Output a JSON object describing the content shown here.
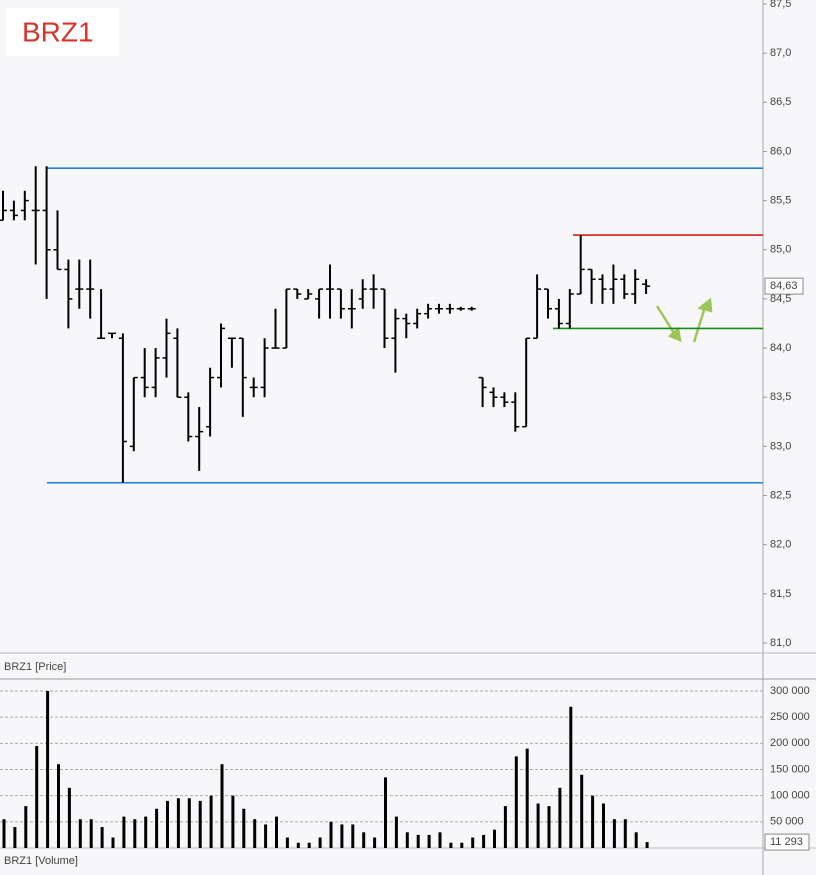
{
  "chart_data": {
    "type": "ohlc",
    "title": "BRZ1",
    "price_label": "BRZ1 [Price]",
    "volume_label": "BRZ1 [Volume]",
    "color": "#000000",
    "open": [
      85.3,
      85.4,
      85.4,
      85.4,
      85.4,
      85.0,
      84.8,
      84.6,
      84.6,
      84.1,
      84.15,
      84.1,
      83.0,
      83.7,
      83.6,
      83.9,
      84.1,
      83.5,
      83.1,
      83.2,
      83.7,
      84.1,
      84.1,
      83.6,
      83.6,
      84.0,
      84.0,
      84.6,
      84.5,
      84.5,
      84.6,
      84.6,
      84.4,
      84.5,
      84.6,
      84.6,
      84.1,
      84.3,
      84.25,
      84.35,
      84.4,
      84.4,
      84.4,
      84.4,
      83.7,
      83.55,
      83.5,
      83.45,
      83.2,
      84.1,
      84.6,
      84.4,
      84.25,
      84.55,
      84.8,
      84.7,
      84.6,
      84.7,
      84.55,
      84.65
    ],
    "high": [
      85.6,
      85.5,
      85.6,
      85.85,
      85.85,
      85.4,
      84.9,
      84.9,
      84.9,
      84.6,
      84.15,
      84.15,
      83.7,
      84.0,
      84.0,
      84.3,
      84.2,
      83.55,
      83.4,
      83.8,
      84.25,
      84.1,
      84.1,
      83.7,
      84.1,
      84.4,
      84.6,
      84.6,
      84.6,
      84.6,
      84.85,
      84.6,
      84.6,
      84.7,
      84.75,
      84.6,
      84.4,
      84.35,
      84.4,
      84.45,
      84.45,
      84.45,
      84.42,
      84.42,
      83.7,
      83.6,
      83.55,
      83.55,
      84.1,
      84.75,
      84.6,
      84.5,
      84.6,
      85.15,
      84.8,
      84.75,
      84.85,
      84.75,
      84.8,
      84.7
    ],
    "low": [
      85.3,
      85.3,
      85.3,
      84.85,
      84.5,
      84.8,
      84.2,
      84.4,
      84.3,
      84.1,
      84.1,
      82.63,
      82.95,
      83.5,
      83.5,
      83.7,
      83.5,
      83.05,
      82.75,
      83.1,
      83.6,
      83.8,
      83.3,
      83.5,
      83.5,
      84.0,
      84.0,
      84.5,
      84.5,
      84.3,
      84.3,
      84.3,
      84.2,
      84.4,
      84.4,
      84.0,
      83.75,
      84.1,
      84.2,
      84.3,
      84.35,
      84.35,
      84.38,
      84.38,
      83.4,
      83.4,
      83.4,
      83.15,
      83.2,
      84.1,
      84.3,
      84.2,
      84.2,
      84.55,
      84.45,
      84.45,
      84.45,
      84.5,
      84.45,
      84.55
    ],
    "close": [
      85.4,
      85.35,
      85.5,
      85.4,
      85.0,
      84.8,
      84.5,
      84.6,
      84.6,
      84.1,
      84.15,
      83.05,
      83.7,
      83.6,
      83.9,
      84.15,
      83.5,
      83.1,
      83.15,
      83.7,
      84.2,
      84.1,
      83.7,
      83.6,
      84.0,
      84.0,
      84.6,
      84.55,
      84.55,
      84.6,
      84.6,
      84.4,
      84.4,
      84.6,
      84.6,
      84.1,
      84.3,
      84.25,
      84.35,
      84.4,
      84.4,
      84.4,
      84.4,
      84.4,
      83.6,
      83.5,
      83.45,
      83.2,
      84.1,
      84.6,
      84.4,
      84.25,
      84.55,
      84.8,
      84.7,
      84.6,
      84.7,
      84.55,
      84.7,
      84.63
    ],
    "last_price": {
      "value": 84.63,
      "label": "84,63"
    },
    "volume": [
      55000,
      40000,
      80000,
      195000,
      300000,
      160000,
      115000,
      55000,
      55000,
      40000,
      20000,
      60000,
      55000,
      60000,
      75000,
      90000,
      95000,
      95000,
      90000,
      100000,
      160000,
      100000,
      75000,
      55000,
      45000,
      60000,
      20000,
      10000,
      10000,
      20000,
      50000,
      45000,
      45000,
      30000,
      20000,
      135000,
      60000,
      30000,
      25000,
      25000,
      30000,
      10000,
      10000,
      20000,
      25000,
      35000,
      80000,
      175000,
      190000,
      85000,
      80000,
      115000,
      270000,
      140000,
      100000,
      85000,
      55000,
      55000,
      30000,
      11293
    ],
    "last_volume": {
      "value": 11293,
      "label": "11 293"
    },
    "levels": [
      {
        "value": 85.83,
        "color": "#1e7fd8"
      },
      {
        "value": 82.63,
        "color": "#1e7fd8"
      },
      {
        "value": 85.15,
        "color": "#d42020"
      },
      {
        "value": 84.2,
        "color": "#1a8a1a"
      }
    ],
    "ylim": [
      81,
      87.5
    ],
    "yticks": [
      {
        "value": 81,
        "label": "81,0"
      },
      {
        "value": 81.5,
        "label": "81,5"
      },
      {
        "value": 82,
        "label": "82,0"
      },
      {
        "value": 82.5,
        "label": "82,5"
      },
      {
        "value": 83,
        "label": "83,0"
      },
      {
        "value": 83.5,
        "label": "83,5"
      },
      {
        "value": 84,
        "label": "84,0"
      },
      {
        "value": 84.5,
        "label": "84,5"
      },
      {
        "value": 85,
        "label": "85,0"
      },
      {
        "value": 85.5,
        "label": "85,5"
      },
      {
        "value": 86,
        "label": "86,0"
      },
      {
        "value": 86.5,
        "label": "86,5"
      },
      {
        "value": 87,
        "label": "87,0"
      },
      {
        "value": 87.5,
        "label": "87,5"
      }
    ],
    "y2lim": [
      0,
      300000
    ],
    "y2ticks": [
      {
        "value": 50000,
        "label": "50 000"
      },
      {
        "value": 100000,
        "label": "100 000"
      },
      {
        "value": 150000,
        "label": "150 000"
      },
      {
        "value": 200000,
        "label": "200 000"
      },
      {
        "value": 250000,
        "label": "250 000"
      },
      {
        "value": 300000,
        "label": "300 000"
      }
    ]
  }
}
